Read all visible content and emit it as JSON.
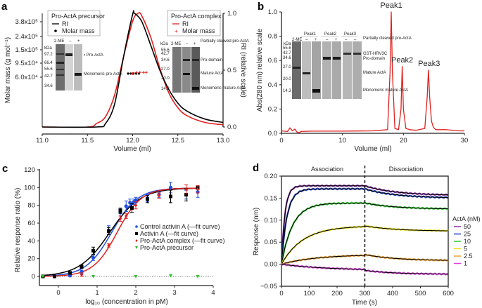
{
  "chart_data": [
    {
      "panel": "a",
      "type": "line",
      "xlabel": "Volume (ml)",
      "ylabel": "Molar mass (g mol⁻¹)",
      "y2label": "RI (relative scale)",
      "xlim": [
        11.0,
        13.0
      ],
      "y2lim": [
        0.0,
        1.0
      ],
      "xticks": [
        "11.0",
        "11.5",
        "12.0",
        "12.5",
        "13.0"
      ],
      "x_tick_values": [
        11.0,
        11.5,
        12.0,
        12.5,
        13.0
      ],
      "yticks_left": [
        "3.8x10⁵",
        "2.4x10⁵",
        "1.5x10⁵",
        "9.5x10⁴",
        "6.0x10⁴"
      ],
      "yticks_right": [
        "1.0",
        "0.5",
        "0.0"
      ],
      "y_right_tick_values": [
        1.0,
        0.5,
        0.0
      ],
      "series": [
        {
          "name": "Pro-ActA precursor RI",
          "color": "#000000",
          "peak_x": 12.02,
          "rise": 0.16,
          "tail": 0.34,
          "x": [
            11.0,
            11.6,
            11.7,
            11.8,
            11.9,
            12.0,
            12.02,
            12.1,
            12.2,
            12.3,
            12.4,
            12.5,
            12.6,
            12.8,
            13.0
          ],
          "y": [
            0.0,
            0.0,
            0.03,
            0.2,
            0.62,
            0.99,
            1.0,
            0.93,
            0.72,
            0.5,
            0.33,
            0.21,
            0.14,
            0.07,
            0.04
          ]
        },
        {
          "name": "Pro-ActA complex RI",
          "color": "#e0201e",
          "x": [
            11.0,
            11.5,
            11.6,
            11.7,
            11.8,
            11.9,
            12.0,
            12.06,
            12.1,
            12.2,
            12.3,
            12.4,
            12.5,
            12.6,
            12.8,
            13.0
          ],
          "y": [
            0.0,
            0.0,
            0.03,
            0.09,
            0.28,
            0.62,
            0.93,
            1.0,
            0.98,
            0.79,
            0.52,
            0.3,
            0.17,
            0.1,
            0.04,
            0.02
          ]
        }
      ],
      "molar_mass_points": [
        {
          "name": "Pro-ActA precursor molar mass",
          "color": "#000000",
          "marker": "circle",
          "x": [
            11.95,
            11.98,
            12.01,
            12.04,
            12.07
          ],
          "y_rel": [
            0.47,
            0.47,
            0.47,
            0.47,
            0.47
          ]
        },
        {
          "name": "Pro-ActA complex molar mass",
          "color": "#e0201e",
          "marker": "plus",
          "x": [
            12.0,
            12.04,
            12.08,
            12.12,
            12.15
          ],
          "y_rel": [
            0.47,
            0.48,
            0.48,
            0.48,
            0.48
          ]
        }
      ],
      "legends": [
        {
          "title": "Pro-ActA precursor",
          "items": [
            {
              "label": "RI",
              "color": "#000000",
              "kind": "line"
            },
            {
              "label": "Molar mass",
              "color": "#000000",
              "kind": "dot"
            }
          ]
        },
        {
          "title": "Pro-ActA complex",
          "items": [
            {
              "label": "RI",
              "color": "#e0201e",
              "kind": "line"
            },
            {
              "label": "Molar mass",
              "color": "#e0201e",
              "kind": "plus"
            }
          ]
        }
      ],
      "gel_insets": [
        {
          "header": [
            "2-ME",
            "–",
            "+"
          ],
          "kda_label": "kDa",
          "markers": [
            "97.2",
            "66.4",
            "55.6",
            "42.7",
            "34.6"
          ],
          "band_labels": [
            "Pro-ActA",
            "Monomeric pro-ActA"
          ]
        },
        {
          "header": [
            "2-ME",
            "–",
            "+"
          ],
          "kda_label": "kDa",
          "markers": [
            "55.6",
            "42.7",
            "34.6",
            "27.0",
            "20.0",
            "14.3"
          ],
          "band_labels": [
            "Partially cleaved pro-ActA",
            "Pro-domain",
            "Mature ActA",
            "Monomeric mature ActA"
          ]
        }
      ]
    },
    {
      "panel": "b",
      "type": "line",
      "xlabel": "Volume (ml)",
      "ylabel": "Abs(280 nm) relative scale",
      "xlim": [
        0,
        30
      ],
      "ylim": [
        0.0,
        1.0
      ],
      "xticks": [
        "0",
        "10",
        "20",
        "30"
      ],
      "x_tick_values": [
        0,
        10,
        20,
        30
      ],
      "yticks": [
        "0.0",
        "0.2",
        "0.4",
        "0.6",
        "0.8",
        "1.0"
      ],
      "y_tick_values": [
        0.0,
        0.2,
        0.4,
        0.6,
        0.8,
        1.0
      ],
      "series": [
        {
          "name": "Abs280",
          "color": "#e0201e",
          "x": [
            0,
            1.0,
            1.4,
            1.8,
            2.2,
            2.5,
            2.9,
            3.2,
            5,
            10,
            15,
            17.4,
            17.8,
            18.0,
            18.2,
            18.6,
            19.2,
            19.6,
            19.8,
            20.0,
            20.4,
            21,
            22,
            23.5,
            23.9,
            24.1,
            24.3,
            24.6,
            24.9,
            25.3,
            27,
            29,
            30
          ],
          "y": [
            0.02,
            0.015,
            0.045,
            0.02,
            0.035,
            0.012,
            0.005,
            0.015,
            0.018,
            0.018,
            0.02,
            0.03,
            0.5,
            1.0,
            0.5,
            0.04,
            0.03,
            0.2,
            0.55,
            0.2,
            0.04,
            0.03,
            0.025,
            0.04,
            0.3,
            0.52,
            0.3,
            0.1,
            0.05,
            0.03,
            0.03,
            0.02,
            0.02
          ]
        }
      ],
      "annotations": [
        {
          "text": "Peak1",
          "x": 18.0,
          "y": 1.0
        },
        {
          "text": "Peak2",
          "x": 19.8,
          "y": 0.55
        },
        {
          "text": "Peak3",
          "x": 24.2,
          "y": 0.52
        }
      ],
      "gel_inset": {
        "header": [
          "2-ME",
          "–",
          "+",
          "–",
          "+",
          "–",
          "–"
        ],
        "groups": [
          "Peak1",
          "Peak2",
          "Peak3"
        ],
        "kda_label": "kDa",
        "markers": [
          "55.6",
          "42.7",
          "34.6",
          "27.0",
          "20.0",
          "14.3"
        ],
        "band_labels": [
          "Partially cleaved pro-ActA",
          "GST-HRV3C",
          "Pro-domain",
          "Mature ActA",
          "Monomeric mature ActA"
        ]
      }
    },
    {
      "panel": "c",
      "type": "scatter",
      "xlabel": "log₁₀ (concentration in pM)",
      "ylabel": "Relative response ratio (%)",
      "xlim": [
        -0.5,
        4
      ],
      "ylim": [
        -10,
        120
      ],
      "xticks": [
        "0",
        "1",
        "2",
        "3",
        "4"
      ],
      "x_tick_values": [
        0,
        1,
        2,
        3,
        4
      ],
      "yticks": [
        "0",
        "20",
        "40",
        "60",
        "80",
        "100",
        "120"
      ],
      "y_tick_values": [
        0,
        20,
        40,
        60,
        80,
        100,
        120
      ],
      "series": [
        {
          "name": "Control activin A",
          "legend": "Control activin A (—fit curve)",
          "color": "#1f4fe0",
          "marker": "circle",
          "x": [
            -0.4,
            -0.1,
            0.3,
            0.6,
            0.9,
            1.3,
            1.6,
            1.75,
            1.85,
            1.95,
            2.0,
            2.3,
            2.6,
            2.9,
            3.3,
            3.6
          ],
          "y": [
            0,
            0,
            1,
            5,
            21,
            52,
            72,
            79,
            83,
            84,
            86,
            88,
            92,
            100,
            92,
            95
          ],
          "err": [
            1,
            1,
            1,
            2,
            3,
            5,
            4,
            6,
            4,
            3,
            3,
            4,
            3,
            6,
            5,
            6
          ],
          "fit": {
            "ec50_log": 1.38,
            "hill": 1.3,
            "top": 99.5,
            "bottom": 0
          }
        },
        {
          "name": "Activin A",
          "legend": "Activin A (—fit curve)",
          "color": "#000000",
          "marker": "square",
          "x": [
            -0.4,
            -0.1,
            0.3,
            0.6,
            0.9,
            1.3,
            1.6,
            1.9,
            2.3,
            2.9,
            3.3,
            3.6
          ],
          "y": [
            0,
            0,
            4,
            11,
            29,
            51,
            74,
            77,
            87,
            90,
            92,
            100
          ],
          "err": [
            1,
            1,
            1,
            2,
            4,
            4,
            3,
            5,
            4,
            7,
            7,
            2
          ],
          "fit": {
            "ec50_log": 1.33,
            "hill": 1.1,
            "top": 99.5,
            "bottom": 0
          }
        },
        {
          "name": "Pro-ActA complex",
          "legend": "Pro-ActA complex (—fit curve)",
          "color": "#e0201e",
          "marker": "diamond",
          "x": [
            0.6,
            1.3,
            1.6,
            1.75,
            2.0,
            2.6,
            3.3,
            3.6
          ],
          "y": [
            2,
            35,
            65,
            68,
            80,
            91,
            98,
            98
          ],
          "err": [
            2,
            2,
            3,
            3,
            4,
            3,
            5,
            4
          ],
          "fit": {
            "ec50_log": 1.52,
            "hill": 1.4,
            "top": 99.5,
            "bottom": 0
          }
        },
        {
          "name": "Pro-ActA precursor",
          "legend": "Pro-ActA precursor",
          "color": "#2dbf2d",
          "marker": "triangle-down",
          "x": [
            -0.4,
            0.9,
            2.0,
            2.9,
            3.6
          ],
          "y": [
            0,
            0,
            0,
            1,
            0
          ],
          "err": [
            0,
            0,
            0,
            0,
            0
          ]
        }
      ],
      "legend_position": "center-right",
      "reference_line": {
        "y": 0,
        "style": "dotted"
      }
    },
    {
      "panel": "d",
      "type": "line",
      "xlabel": "Time (s)",
      "ylabel": "Response (nm)",
      "xlim": [
        0,
        600
      ],
      "ylim": [
        -0.05,
        0.2
      ],
      "xticks": [
        "0",
        "100",
        "200",
        "300",
        "400",
        "500",
        "600"
      ],
      "x_tick_values": [
        0,
        100,
        200,
        300,
        400,
        500,
        600
      ],
      "yticks": [
        "−0.05",
        "0.00",
        "0.05",
        "0.10",
        "0.15",
        "0.20"
      ],
      "y_tick_values": [
        -0.05,
        0.0,
        0.05,
        0.1,
        0.15,
        0.2
      ],
      "phases": [
        {
          "label": "Association",
          "from": 0,
          "to": 300
        },
        {
          "label": "Dissociation",
          "from": 300,
          "to": 600
        }
      ],
      "divider_x": 300,
      "legend_title": "ActA (nM)",
      "legend_position": "right",
      "series": [
        {
          "name": "50",
          "color": "#8b2fa8",
          "plateau": 0.178,
          "kon": 0.08,
          "end": 0.156
        },
        {
          "name": "25",
          "color": "#1f3fc0",
          "plateau": 0.171,
          "kon": 0.05,
          "end": 0.15
        },
        {
          "name": "10",
          "color": "#2ec82e",
          "plateau": 0.139,
          "kon": 0.025,
          "end": 0.125
        },
        {
          "name": "5",
          "color": "#e8e020",
          "plateau": 0.087,
          "kon": 0.013,
          "end": 0.075
        },
        {
          "name": "2.5",
          "color": "#f0a030",
          "plateau": 0.022,
          "kon": 0.008,
          "end": 0.008
        },
        {
          "name": "1",
          "color": "#e040e0",
          "plateau": -0.014,
          "kon": 0.006,
          "end": -0.023
        }
      ]
    }
  ]
}
